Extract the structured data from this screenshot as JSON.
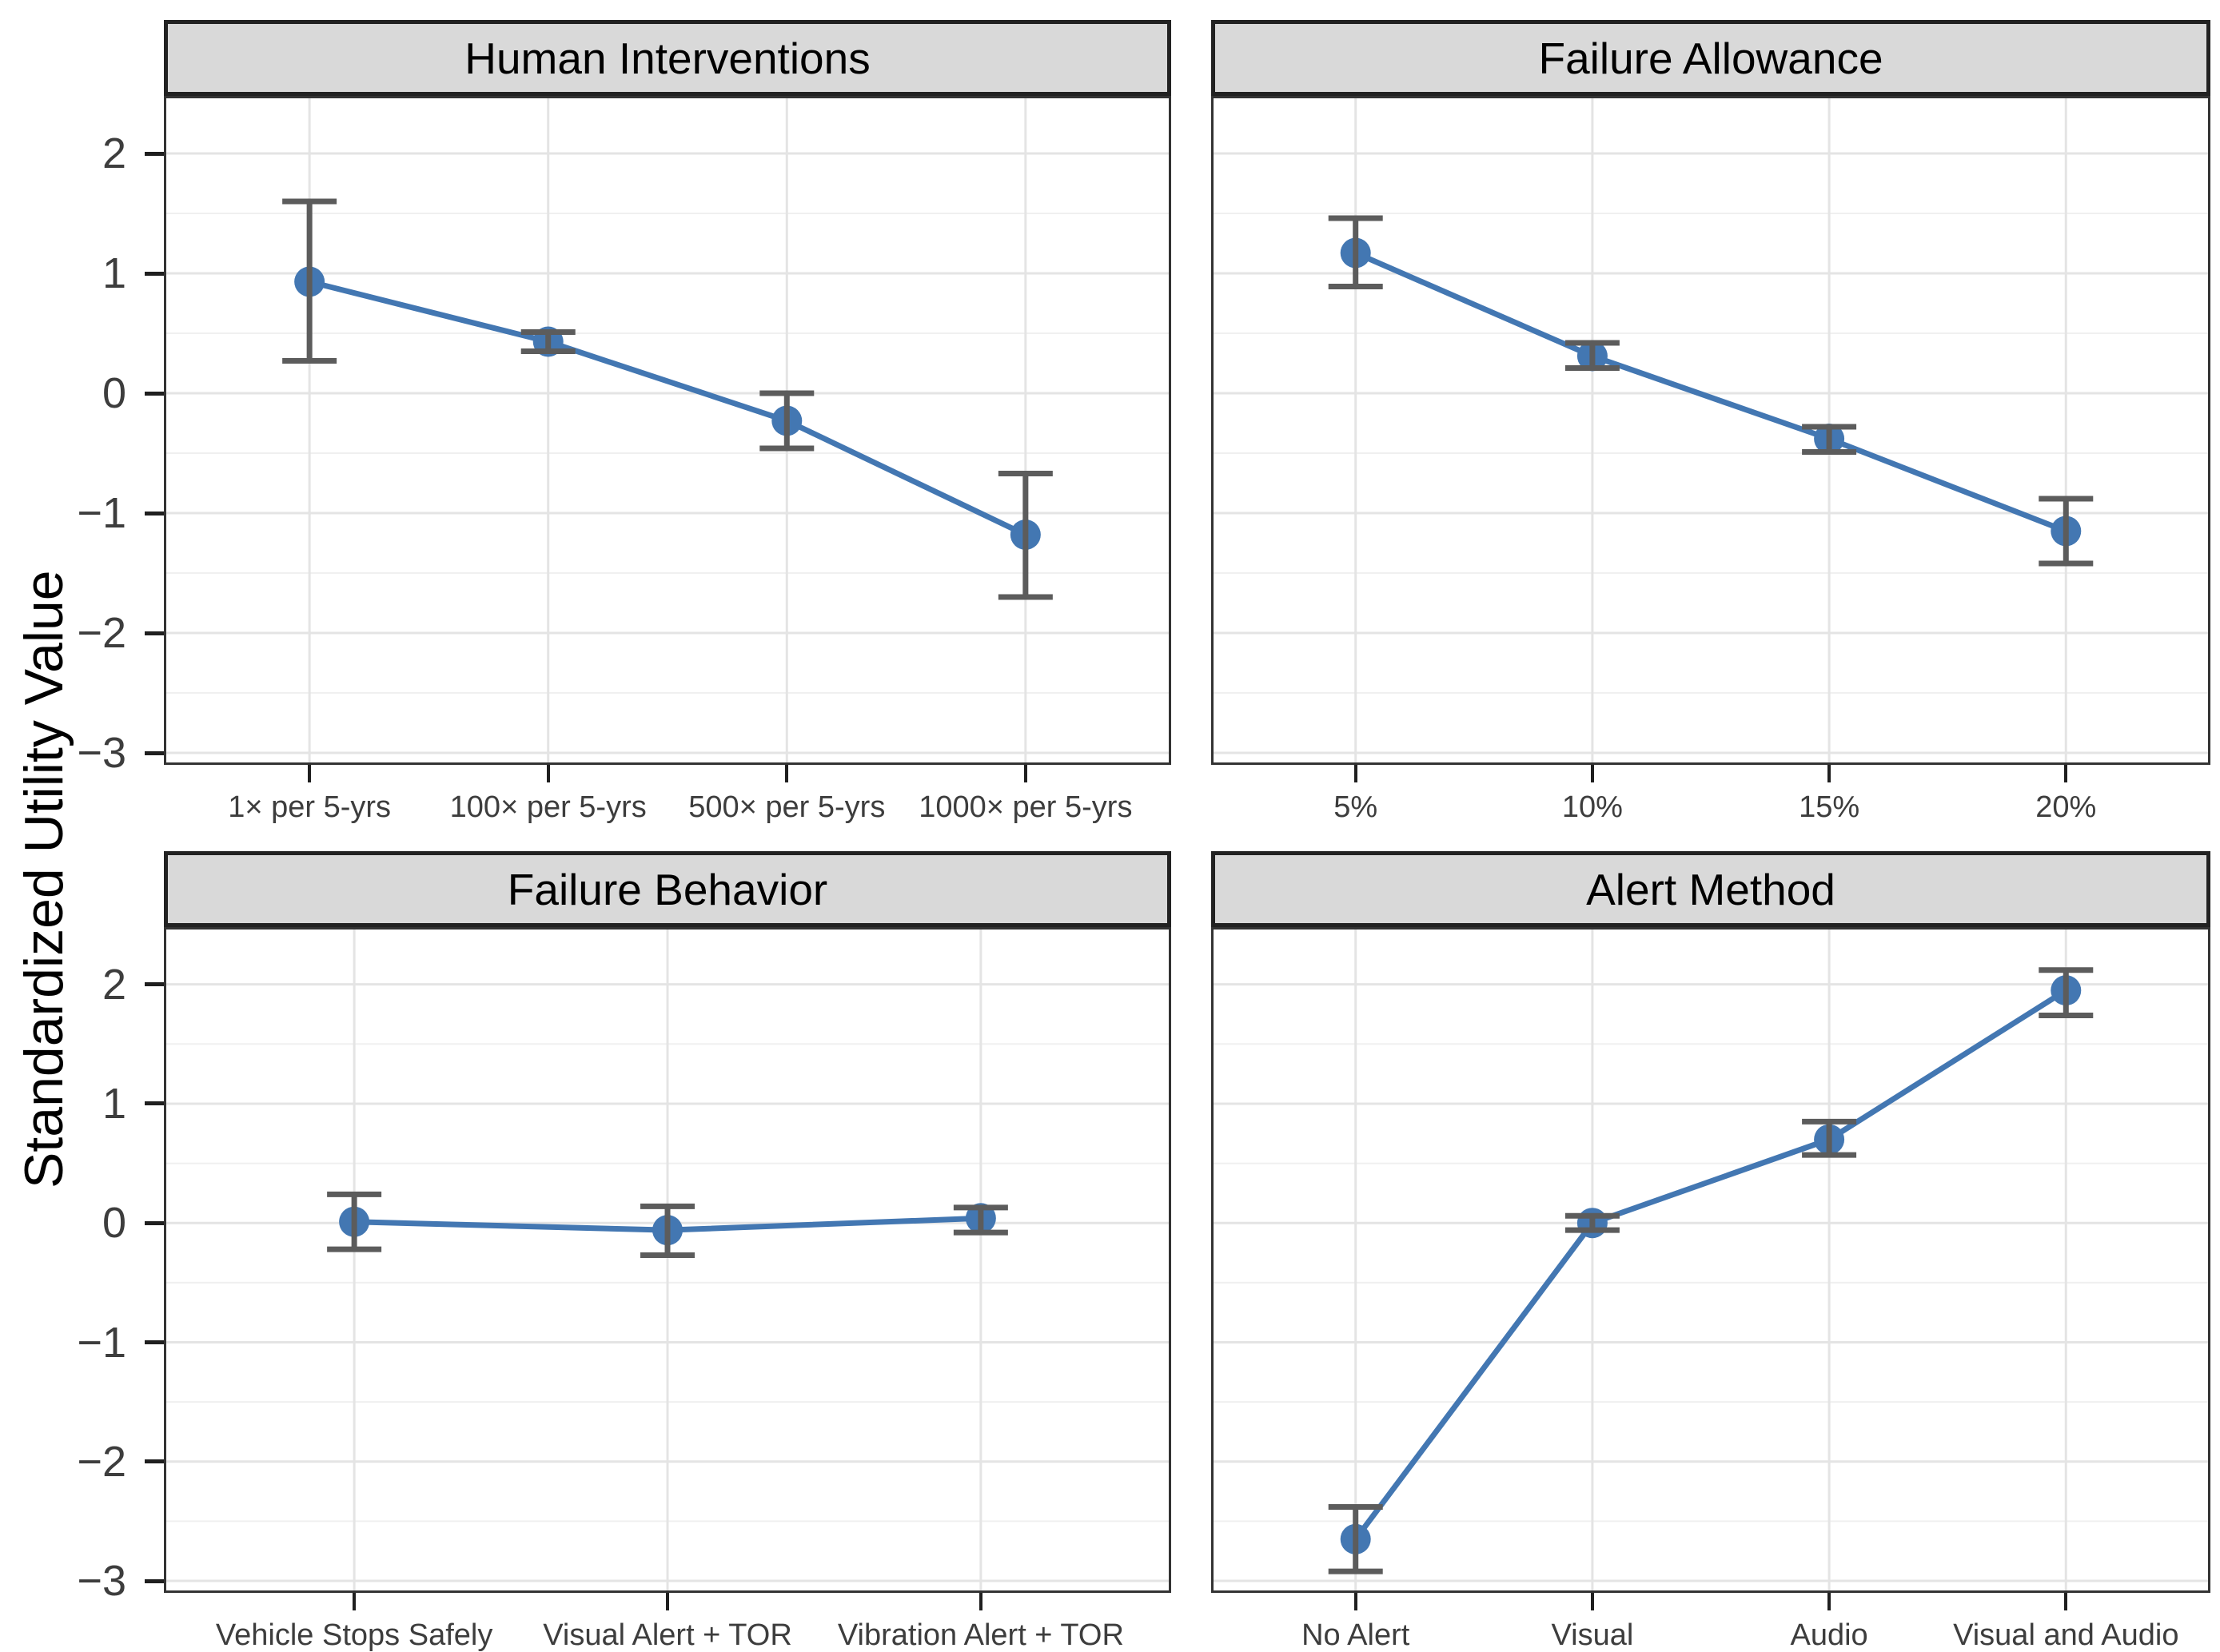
{
  "figure": {
    "colors": {
      "point": "#4377b2",
      "line": "#4377b2",
      "error_bar": "#5c5c5c",
      "strip_fill": "#d9d9d9",
      "strip_border": "#222222",
      "panel_border": "#333333",
      "grid_major": "#e4e4e4",
      "grid_minor": "#f0f0f0",
      "tick_mark": "#1f1f1f",
      "tick_text": "#3d3d3d",
      "background": "#ffffff"
    }
  },
  "chart_data": {
    "type": "line",
    "ylabel": "Standardized Utility Value",
    "ylim": [
      -3.08,
      2.46
    ],
    "y_ticks": [
      2,
      1,
      0,
      -1,
      -2,
      -3
    ],
    "y_tick_labels": [
      "2",
      "1",
      "0",
      "−1",
      "−2",
      "−3"
    ],
    "grid": "major horizontal + minor horizontal at 0.5 steps + vertical at categories",
    "legend": "none",
    "points_style": "blue dots with gray error bars, connected by blue line",
    "facets": [
      {
        "title": "Human Interventions",
        "categories": [
          "1× per 5-yrs",
          "100× per 5-yrs",
          "500× per 5-yrs",
          "1000× per 5-yrs"
        ],
        "values": [
          0.93,
          0.43,
          -0.23,
          -1.18
        ],
        "ci_low": [
          0.27,
          0.35,
          -0.46,
          -1.7
        ],
        "ci_high": [
          1.6,
          0.51,
          0.0,
          -0.67
        ]
      },
      {
        "title": "Failure Allowance",
        "categories": [
          "5%",
          "10%",
          "15%",
          "20%"
        ],
        "values": [
          1.17,
          0.31,
          -0.38,
          -1.15
        ],
        "ci_low": [
          0.89,
          0.21,
          -0.49,
          -1.42
        ],
        "ci_high": [
          1.46,
          0.42,
          -0.28,
          -0.88
        ]
      },
      {
        "title": "Failure Behavior",
        "categories": [
          "Vehicle Stops Safely",
          "Visual Alert + TOR",
          "Vibration Alert + TOR"
        ],
        "values": [
          0.01,
          -0.06,
          0.04
        ],
        "ci_low": [
          -0.22,
          -0.27,
          -0.08
        ],
        "ci_high": [
          0.24,
          0.14,
          0.13
        ]
      },
      {
        "title": "Alert Method",
        "categories": [
          "No Alert",
          "Visual",
          "Audio",
          "Visual and Audio"
        ],
        "values": [
          -2.65,
          0.0,
          0.7,
          1.95
        ],
        "ci_low": [
          -2.92,
          -0.06,
          0.57,
          1.74
        ],
        "ci_high": [
          -2.38,
          0.06,
          0.85,
          2.12
        ]
      }
    ]
  }
}
